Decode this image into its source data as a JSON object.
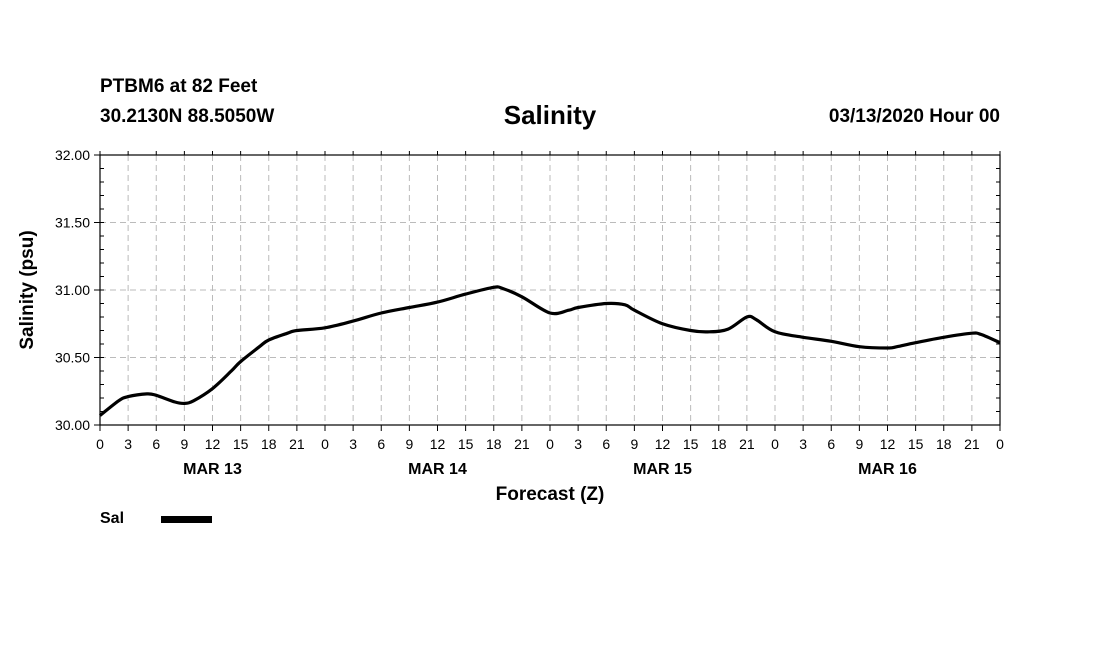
{
  "header": {
    "station": "PTBM6 at 82 Feet",
    "coords": "30.2130N 88.5050W",
    "title": "Salinity",
    "date": "03/13/2020 Hour 00"
  },
  "legend": {
    "label": "Sal",
    "color": "#000000"
  },
  "chart_data": {
    "type": "line",
    "title": "Salinity",
    "xlabel": "Forecast (Z)",
    "ylabel": "Salinity (psu)",
    "ylim": [
      30.0,
      32.0
    ],
    "xlim": [
      0,
      96
    ],
    "grid": true,
    "legend_position": "bottom-left",
    "y_ticks": [
      "30.00",
      "30.50",
      "31.00",
      "31.50",
      "32.00"
    ],
    "x_tick_labels": [
      "0",
      "3",
      "6",
      "9",
      "12",
      "15",
      "18",
      "21",
      "0",
      "3",
      "6",
      "9",
      "12",
      "15",
      "18",
      "21",
      "0",
      "3",
      "6",
      "9",
      "12",
      "15",
      "18",
      "21",
      "0",
      "3",
      "6",
      "9",
      "12",
      "15",
      "18",
      "21",
      "0"
    ],
    "day_labels": [
      {
        "label": "MAR 13",
        "hour": 12
      },
      {
        "label": "MAR 14",
        "hour": 36
      },
      {
        "label": "MAR 15",
        "hour": 60
      },
      {
        "label": "MAR 16",
        "hour": 84
      }
    ],
    "series": [
      {
        "name": "Sal",
        "x": [
          0,
          2,
          3,
          5,
          6,
          8,
          9,
          10,
          12,
          14,
          15,
          17,
          18,
          20,
          21,
          24,
          27,
          30,
          33,
          36,
          39,
          42,
          43,
          45,
          48,
          50,
          51,
          54,
          56,
          57,
          60,
          63,
          65,
          67,
          69,
          70,
          72,
          75,
          78,
          81,
          84,
          85,
          87,
          90,
          93,
          94,
          96
        ],
        "y": [
          30.07,
          30.18,
          30.21,
          30.23,
          30.22,
          30.17,
          30.16,
          30.18,
          30.27,
          30.4,
          30.47,
          30.58,
          30.63,
          30.68,
          30.7,
          30.72,
          30.77,
          30.83,
          30.87,
          30.91,
          30.97,
          31.02,
          31.01,
          30.95,
          30.83,
          30.85,
          30.87,
          30.9,
          30.89,
          30.85,
          30.75,
          30.7,
          30.69,
          30.71,
          30.8,
          30.78,
          30.69,
          30.65,
          30.62,
          30.58,
          30.57,
          30.58,
          30.61,
          30.65,
          30.68,
          30.67,
          30.61
        ]
      }
    ]
  }
}
